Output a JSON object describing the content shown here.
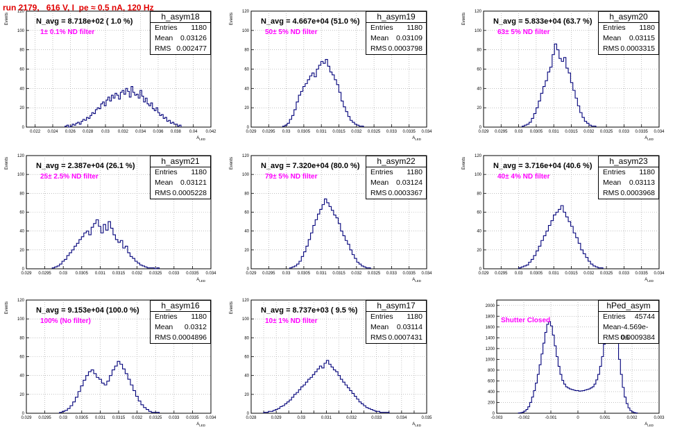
{
  "title": "run 2179,   616 V, I_pe ≈ 0.5 nA, 120 Hz",
  "chart_data": [
    {
      "type": "histogram",
      "name": "h_asym18",
      "stats": {
        "entries": "1180",
        "mean": "0.03126",
        "rms": "0.002477"
      },
      "n_avg_label": "N_avg = 8.718e+02 ( 1.0 %)",
      "filter_label": "1± 0.1% ND filter",
      "xlabel": "A_LED",
      "ylabel": "Events",
      "xlim": [
        0.021,
        0.042
      ],
      "ylim": [
        0,
        120
      ],
      "xticks": [
        0.022,
        0.024,
        0.026,
        0.028,
        0.03,
        0.032,
        0.034,
        0.036,
        0.038,
        0.04,
        0.042
      ],
      "xtick_labels": [
        "0.022",
        "0.024",
        "0.026",
        "0.028",
        "0.03",
        "0.032",
        "0.034",
        "0.036",
        "0.038",
        "0.04",
        "0.042"
      ],
      "yticks": [
        0,
        20,
        40,
        60,
        80,
        100,
        120
      ],
      "bin_edges_range": [
        0.0254,
        0.0386
      ],
      "values": [
        1,
        2,
        0,
        1,
        3,
        2,
        4,
        5,
        3,
        6,
        8,
        7,
        10,
        9,
        12,
        15,
        14,
        18,
        20,
        19,
        24,
        26,
        22,
        28,
        31,
        27,
        33,
        30,
        35,
        33,
        29,
        36,
        38,
        34,
        40,
        37,
        31,
        42,
        36,
        33,
        34,
        30,
        38,
        32,
        26,
        30,
        24,
        22,
        25,
        19,
        17,
        20,
        15,
        12,
        13,
        9,
        10,
        6,
        7,
        4,
        5,
        3,
        3,
        1,
        2
      ]
    },
    {
      "type": "histogram",
      "name": "h_asym19",
      "stats": {
        "entries": "1180",
        "mean": "0.03109",
        "rms": "0.0003798"
      },
      "n_avg_label": "N_avg = 4.667e+04 (51.0 %)",
      "filter_label": "50± 5% ND filter",
      "xlabel": "A_LED",
      "ylabel": "Events",
      "xlim": [
        0.029,
        0.034
      ],
      "ylim": [
        0,
        120
      ],
      "xticks": [
        0.029,
        0.0295,
        0.03,
        0.0305,
        0.031,
        0.0315,
        0.032,
        0.0325,
        0.033,
        0.0335,
        0.034
      ],
      "xtick_labels": [
        "0.029",
        "0.0295",
        "0.03",
        "0.0305",
        "0.031",
        "0.0315",
        "0.032",
        "0.0325",
        "0.033",
        "0.0335",
        "0.034"
      ],
      "yticks": [
        0,
        20,
        40,
        60,
        80,
        100,
        120
      ],
      "bin_edges_range": [
        0.0299,
        0.0322
      ],
      "values": [
        1,
        2,
        4,
        8,
        12,
        18,
        26,
        33,
        37,
        42,
        45,
        49,
        53,
        56,
        52,
        60,
        64,
        68,
        66,
        70,
        63,
        57,
        54,
        49,
        44,
        36,
        27,
        21,
        16,
        11,
        7,
        5,
        3,
        2,
        1,
        1
      ]
    },
    {
      "type": "histogram",
      "name": "h_asym20",
      "stats": {
        "entries": "1180",
        "mean": "0.03115",
        "rms": "0.0003315"
      },
      "n_avg_label": "N_avg = 5.833e+04 (63.7 %)",
      "filter_label": "63± 5% ND filter",
      "xlabel": "A_LED",
      "ylabel": "Events",
      "xlim": [
        0.029,
        0.034
      ],
      "ylim": [
        0,
        120
      ],
      "xticks": [
        0.029,
        0.0295,
        0.03,
        0.0305,
        0.031,
        0.0315,
        0.032,
        0.0325,
        0.033,
        0.0335,
        0.034
      ],
      "xtick_labels": [
        "0.029",
        "0.0295",
        "0.03",
        "0.0305",
        "0.031",
        "0.0315",
        "0.032",
        "0.0325",
        "0.033",
        "0.0335",
        "0.034"
      ],
      "yticks": [
        0,
        20,
        40,
        60,
        80,
        100,
        120
      ],
      "bin_edges_range": [
        0.0301,
        0.0322
      ],
      "values": [
        1,
        2,
        3,
        5,
        9,
        14,
        20,
        27,
        35,
        42,
        48,
        57,
        62,
        75,
        86,
        80,
        71,
        68,
        72,
        61,
        56,
        46,
        38,
        30,
        22,
        15,
        10,
        6,
        4,
        2,
        1,
        1
      ]
    },
    {
      "type": "histogram",
      "name": "h_asym21",
      "stats": {
        "entries": "1180",
        "mean": "0.03121",
        "rms": "0.0005228"
      },
      "n_avg_label": "N_avg = 2.387e+04 (26.1 %)",
      "filter_label": "25± 2.5% ND filter",
      "xlabel": "A_LED",
      "ylabel": "Events",
      "xlim": [
        0.029,
        0.034
      ],
      "ylim": [
        0,
        120
      ],
      "xticks": [
        0.029,
        0.0295,
        0.03,
        0.0305,
        0.031,
        0.0315,
        0.032,
        0.0325,
        0.033,
        0.0335,
        0.034
      ],
      "xtick_labels": [
        "0.029",
        "0.0295",
        "0.03",
        "0.0305",
        "0.031",
        "0.0315",
        "0.032",
        "0.0325",
        "0.033",
        "0.0335",
        "0.034"
      ],
      "yticks": [
        0,
        20,
        40,
        60,
        80,
        100,
        120
      ],
      "bin_edges_range": [
        0.0297,
        0.0326
      ],
      "values": [
        1,
        2,
        3,
        5,
        8,
        10,
        14,
        17,
        20,
        24,
        27,
        31,
        34,
        38,
        40,
        36,
        44,
        48,
        52,
        45,
        38,
        47,
        41,
        50,
        43,
        36,
        31,
        28,
        30,
        22,
        24,
        17,
        13,
        11,
        8,
        6,
        4,
        3,
        2,
        1,
        1,
        1,
        0,
        1
      ]
    },
    {
      "type": "histogram",
      "name": "h_asym22",
      "stats": {
        "entries": "1180",
        "mean": "0.03124",
        "rms": "0.0003367"
      },
      "n_avg_label": "N_avg = 7.320e+04 (80.0 %)",
      "filter_label": "79± 5% ND filter",
      "xlabel": "A_LED",
      "ylabel": "Events",
      "xlim": [
        0.029,
        0.034
      ],
      "ylim": [
        0,
        120
      ],
      "xticks": [
        0.029,
        0.0295,
        0.03,
        0.0305,
        0.031,
        0.0315,
        0.032,
        0.0325,
        0.033,
        0.0335,
        0.034
      ],
      "xtick_labels": [
        "0.029",
        "0.0295",
        "0.03",
        "0.0305",
        "0.031",
        "0.0315",
        "0.032",
        "0.0325",
        "0.033",
        "0.0335",
        "0.034"
      ],
      "yticks": [
        0,
        20,
        40,
        60,
        80,
        100,
        120
      ],
      "bin_edges_range": [
        0.0301,
        0.0324
      ],
      "values": [
        1,
        2,
        3,
        5,
        8,
        13,
        18,
        24,
        31,
        38,
        46,
        52,
        58,
        63,
        68,
        74,
        70,
        66,
        62,
        57,
        54,
        48,
        40,
        35,
        30,
        26,
        20,
        15,
        11,
        7,
        5,
        3,
        2,
        1,
        1
      ]
    },
    {
      "type": "histogram",
      "name": "h_asym23",
      "stats": {
        "entries": "1180",
        "mean": "0.03113",
        "rms": "0.0003968"
      },
      "n_avg_label": "N_avg = 3.716e+04 (40.6 %)",
      "filter_label": "40± 4% ND filter",
      "xlabel": "A_LED",
      "ylabel": "Events",
      "xlim": [
        0.029,
        0.034
      ],
      "ylim": [
        0,
        120
      ],
      "xticks": [
        0.029,
        0.0295,
        0.03,
        0.0305,
        0.031,
        0.0315,
        0.032,
        0.0325,
        0.033,
        0.0335,
        0.034
      ],
      "xtick_labels": [
        "0.029",
        "0.0295",
        "0.03",
        "0.0305",
        "0.031",
        "0.0315",
        "0.032",
        "0.0325",
        "0.033",
        "0.0335",
        "0.034"
      ],
      "yticks": [
        0,
        20,
        40,
        60,
        80,
        100,
        120
      ],
      "bin_edges_range": [
        0.03,
        0.0324
      ],
      "values": [
        1,
        2,
        3,
        4,
        7,
        10,
        14,
        19,
        24,
        30,
        35,
        40,
        46,
        51,
        57,
        60,
        63,
        67,
        60,
        55,
        50,
        45,
        38,
        33,
        27,
        20,
        16,
        12,
        8,
        5,
        3,
        2,
        1,
        1
      ]
    },
    {
      "type": "histogram",
      "name": "h_asym16",
      "stats": {
        "entries": "1180",
        "mean": "0.0312",
        "rms": "0.0004896"
      },
      "n_avg_label": "N_avg = 9.153e+04 (100.0 %)",
      "filter_label": "100% (No filter)",
      "xlabel": "A_LED",
      "ylabel": "Events",
      "xlim": [
        0.029,
        0.034
      ],
      "ylim": [
        0,
        120
      ],
      "xticks": [
        0.029,
        0.0295,
        0.03,
        0.0305,
        0.031,
        0.0315,
        0.032,
        0.0325,
        0.033,
        0.0335,
        0.034
      ],
      "xtick_labels": [
        "0.029",
        "0.0295",
        "0.03",
        "0.0305",
        "0.031",
        "0.0315",
        "0.032",
        "0.0325",
        "0.033",
        "0.0335",
        "0.034"
      ],
      "yticks": [
        0,
        20,
        40,
        60,
        80,
        100,
        120
      ],
      "bin_edges_range": [
        0.0299,
        0.0326
      ],
      "values": [
        1,
        2,
        3,
        5,
        8,
        12,
        17,
        23,
        29,
        35,
        40,
        44,
        46,
        42,
        38,
        36,
        32,
        30,
        34,
        40,
        46,
        50,
        55,
        52,
        47,
        42,
        36,
        30,
        24,
        18,
        13,
        9,
        6,
        4,
        2,
        1,
        1,
        1
      ]
    },
    {
      "type": "histogram",
      "name": "h_asym17",
      "stats": {
        "entries": "1180",
        "mean": "0.03114",
        "rms": "0.0007431"
      },
      "n_avg_label": "N_avg = 8.737e+03 ( 9.5 %)",
      "filter_label": "10± 1% ND filter",
      "xlabel": "A_LED",
      "ylabel": "Events",
      "xlim": [
        0.028,
        0.035
      ],
      "ylim": [
        0,
        120
      ],
      "xticks": [
        0.028,
        0.0285,
        0.029,
        0.0295,
        0.03,
        0.0305,
        0.031,
        0.0315,
        0.032,
        0.0325,
        0.033,
        0.0335,
        0.034,
        0.0345,
        0.035
      ],
      "xtick_labels": [
        "0.028",
        "",
        "0.029",
        "",
        "0.03",
        "",
        "0.031",
        "",
        "0.032",
        "",
        "0.033",
        "",
        "0.034",
        "",
        "0.035"
      ],
      "yticks": [
        0,
        20,
        40,
        60,
        80,
        100,
        120
      ],
      "bin_edges_range": [
        0.0285,
        0.0335
      ],
      "values": [
        1,
        1,
        2,
        2,
        3,
        4,
        5,
        7,
        8,
        10,
        12,
        14,
        17,
        20,
        22,
        25,
        28,
        30,
        33,
        36,
        38,
        41,
        44,
        47,
        50,
        48,
        53,
        56,
        52,
        49,
        46,
        44,
        40,
        36,
        33,
        30,
        27,
        24,
        21,
        18,
        15,
        12,
        10,
        8,
        6,
        5,
        4,
        3,
        2,
        2,
        1,
        1,
        1,
        1
      ]
    },
    {
      "type": "histogram",
      "name": "hPed_asym",
      "stats": {
        "entries": "45744",
        "mean": "-4.569e-06",
        "rms": "0.0009384"
      },
      "annotation": "Shutter Closed",
      "xlabel": "A_LED",
      "ylabel": "",
      "xlim": [
        -0.003,
        0.003
      ],
      "ylim": [
        0,
        2100
      ],
      "xticks": [
        -0.003,
        -0.002,
        -0.001,
        0,
        0.001,
        0.002,
        0.003
      ],
      "xtick_labels": [
        "-0.003",
        "-0.002",
        "-0.001",
        "0",
        "0.001",
        "0.002",
        "0.003"
      ],
      "yticks": [
        0,
        200,
        400,
        600,
        800,
        1000,
        1200,
        1400,
        1600,
        1800,
        2000
      ],
      "bin_edges_range": [
        -0.0022,
        0.0022
      ],
      "values": [
        5,
        10,
        20,
        40,
        70,
        120,
        200,
        300,
        420,
        560,
        720,
        900,
        1100,
        1300,
        1500,
        1650,
        1700,
        1620,
        1450,
        1250,
        1050,
        870,
        720,
        610,
        540,
        490,
        470,
        450,
        440,
        430,
        420,
        420,
        410,
        415,
        420,
        430,
        440,
        450,
        470,
        490,
        540,
        620,
        720,
        870,
        1050,
        1280,
        1500,
        1750,
        1950,
        2000,
        1850,
        1600,
        1300,
        1000,
        720,
        480,
        300,
        180,
        100,
        50,
        25,
        12,
        5
      ]
    }
  ]
}
